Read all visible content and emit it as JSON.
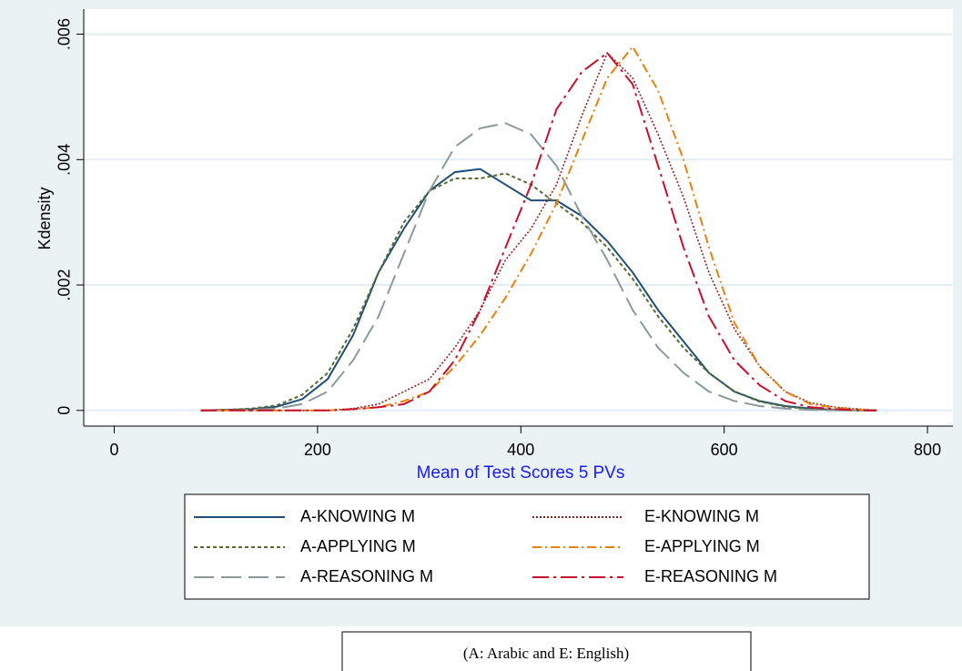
{
  "chart_data": {
    "type": "line",
    "ylabel": "Kdensity",
    "xlabel": "Mean of Test Scores 5 PVs",
    "note": "(A: Arabic and E: English)",
    "xlim": [
      -30,
      825
    ],
    "ylim": [
      -0.00025,
      0.0064
    ],
    "xticks": [
      0,
      200,
      400,
      600,
      800
    ],
    "yticks": [
      0,
      {
        "value": 0.002,
        "label": ".002"
      },
      {
        "value": 0.004,
        "label": ".004"
      },
      {
        "value": 0.006,
        "label": ".006"
      }
    ],
    "grid": true,
    "legend": "bottom",
    "x": [
      85,
      110,
      135,
      160,
      185,
      210,
      235,
      260,
      285,
      310,
      335,
      360,
      385,
      410,
      435,
      460,
      485,
      510,
      535,
      560,
      585,
      610,
      635,
      660,
      685,
      710,
      735,
      750
    ],
    "series": [
      {
        "name": "A-KNOWING M",
        "color": "#1f4e79",
        "dash": "solid",
        "values": [
          0,
          1e-05,
          2e-05,
          6e-05,
          0.00018,
          0.0005,
          0.0012,
          0.0022,
          0.0029,
          0.0035,
          0.0038,
          0.00385,
          0.0036,
          0.00335,
          0.00335,
          0.0031,
          0.0027,
          0.0022,
          0.0016,
          0.0011,
          0.0006,
          0.0003,
          0.00015,
          7e-05,
          3e-05,
          1e-05,
          0,
          0
        ]
      },
      {
        "name": "A-APPLYING M",
        "color": "#556b2f",
        "dash": "short",
        "values": [
          0,
          1e-05,
          3e-05,
          8e-05,
          0.00025,
          0.0006,
          0.0013,
          0.0022,
          0.003,
          0.0035,
          0.0037,
          0.0037,
          0.00378,
          0.0036,
          0.0033,
          0.003,
          0.0026,
          0.0021,
          0.0015,
          0.001,
          0.0006,
          0.0003,
          0.00014,
          6e-05,
          2e-05,
          1e-05,
          0,
          0
        ]
      },
      {
        "name": "A-REASONING M",
        "color": "#8a9a9a",
        "dash": "long",
        "values": [
          0,
          0,
          1e-05,
          3e-05,
          0.0001,
          0.0003,
          0.0008,
          0.0015,
          0.0025,
          0.0035,
          0.0042,
          0.0045,
          0.00458,
          0.0044,
          0.0039,
          0.0031,
          0.0024,
          0.0016,
          0.001,
          0.0006,
          0.0003,
          0.00015,
          7e-05,
          3e-05,
          1e-05,
          0,
          0,
          0
        ]
      },
      {
        "name": "E-KNOWING M",
        "color": "#8b2323",
        "dash": "dot",
        "values": [
          0,
          0,
          0,
          0,
          0,
          0,
          3e-05,
          0.0001,
          0.0003,
          0.0005,
          0.001,
          0.0016,
          0.0024,
          0.0029,
          0.0036,
          0.0047,
          0.0057,
          0.0053,
          0.0044,
          0.0034,
          0.0022,
          0.0013,
          0.0007,
          0.0003,
          0.00012,
          5e-05,
          2e-05,
          0
        ]
      },
      {
        "name": "E-APPLYING M",
        "color": "#e8820c",
        "dash": "dashdot",
        "values": [
          0,
          0,
          0,
          0,
          0,
          0,
          2e-05,
          5e-05,
          0.00015,
          0.0003,
          0.0007,
          0.0012,
          0.0018,
          0.0025,
          0.0033,
          0.0043,
          0.0053,
          0.0058,
          0.0051,
          0.004,
          0.0026,
          0.0014,
          0.0007,
          0.0003,
          0.0001,
          4e-05,
          1e-05,
          0
        ]
      },
      {
        "name": "E-REASONING M",
        "color": "#c8102e",
        "dash": "longdashdot",
        "values": [
          0,
          0,
          0,
          0,
          0,
          0,
          2e-05,
          5e-05,
          0.0001,
          0.0003,
          0.0008,
          0.0016,
          0.0026,
          0.0036,
          0.0048,
          0.0054,
          0.0057,
          0.0052,
          0.0039,
          0.0026,
          0.0015,
          0.0008,
          0.0004,
          0.00015,
          5e-05,
          2e-05,
          0,
          0
        ]
      }
    ]
  }
}
